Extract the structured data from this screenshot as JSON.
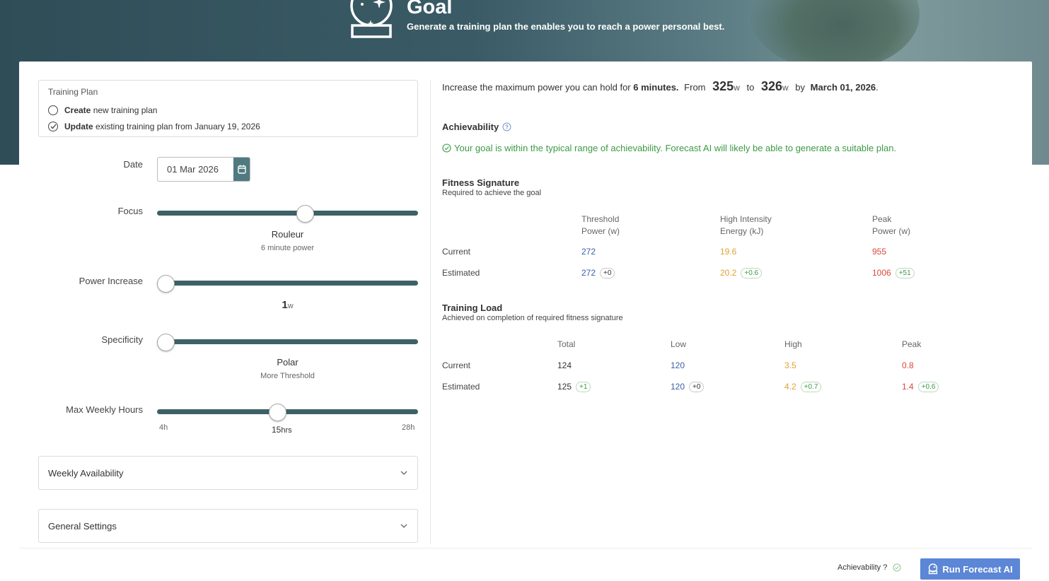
{
  "header": {
    "title": "Goal",
    "subtitle": "Generate a training plan the enables you to reach a power personal best."
  },
  "training_plan": {
    "title": "Training Plan",
    "options": [
      {
        "bold": "Create",
        "rest": " new training plan",
        "selected": false
      },
      {
        "bold": "Update",
        "rest": " existing training plan from January 19, 2026",
        "selected": true
      }
    ]
  },
  "form": {
    "date_label": "Date",
    "date_value": "01 Mar 2026",
    "focus": {
      "label": "Focus",
      "value": "Rouleur",
      "sub": "6 minute power",
      "level": 0.57
    },
    "power_increase": {
      "label": "Power Increase",
      "value": "1",
      "unit": "w",
      "level": 0.0
    },
    "specificity": {
      "label": "Specificity",
      "value": "Polar",
      "sub": "More Threshold",
      "level": 0.0
    },
    "max_weekly_hours": {
      "label": "Max Weekly Hours",
      "value": "15",
      "unit": "hrs",
      "min": "4h",
      "max": "28h",
      "level": 0.46
    }
  },
  "accordions": {
    "weekly": "Weekly Availability",
    "general": "General Settings"
  },
  "goal": {
    "prefix": "Increase the maximum power you can hold for ",
    "duration": "6 minutes.",
    "from_label": "From",
    "from_value": "325",
    "to_label": "to",
    "to_value": "326",
    "unit": "w",
    "by_label": "by",
    "by_date": "March 01, 2026"
  },
  "achievability": {
    "title": "Achievability",
    "message": "Your goal is within the typical range of achievability. Forecast AI will likely be able to generate a suitable plan."
  },
  "fitness_signature": {
    "title": "Fitness Signature",
    "subtitle": "Required to achieve the goal",
    "headers": [
      [
        "Threshold",
        "Power (w)"
      ],
      [
        "High Intensity",
        "Energy (kJ)"
      ],
      [
        "Peak",
        "Power (w)"
      ]
    ],
    "rows": [
      {
        "label": "Current",
        "values": [
          "272",
          "19.6",
          "955"
        ],
        "deltas": [
          "",
          "",
          ""
        ]
      },
      {
        "label": "Estimated",
        "values": [
          "272",
          "20.2",
          "1006"
        ],
        "deltas": [
          "+0",
          "+0.6",
          "+51"
        ]
      }
    ]
  },
  "training_load": {
    "title": "Training Load",
    "subtitle": "Achieved on completion of required fitness signature",
    "headers": [
      "Total",
      "Low",
      "High",
      "Peak"
    ],
    "rows": [
      {
        "label": "Current",
        "values": [
          "124",
          "120",
          "3.5",
          "0.8"
        ],
        "deltas": [
          "",
          "",
          "",
          ""
        ]
      },
      {
        "label": "Estimated",
        "values": [
          "125",
          "120",
          "4.2",
          "1.4"
        ],
        "deltas": [
          "+1",
          "+0",
          "+0.7",
          "+0.6"
        ]
      }
    ]
  },
  "footer": {
    "achievability_label": "Achievability ?",
    "run_button": "Run Forecast AI"
  },
  "colors": {
    "threshold": "#3b5fa8",
    "high_intensity": "#e0a233",
    "peak": "#d9483b",
    "positive": "#3c9a43",
    "slider_track": "#3d6166",
    "primary_button": "#5c86d6"
  }
}
